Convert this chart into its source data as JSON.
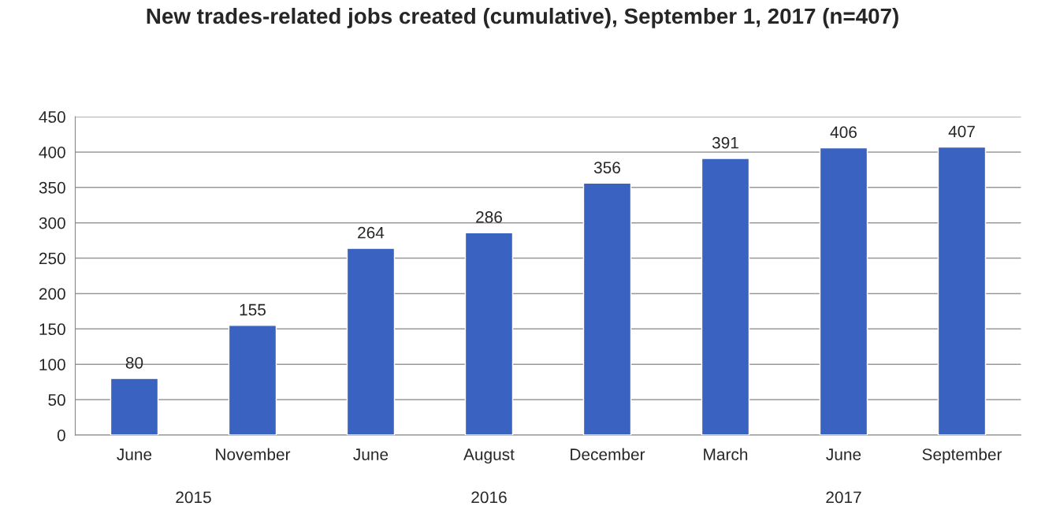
{
  "chart_data": {
    "type": "bar",
    "title": "New trades-related jobs created (cumulative), September 1, 2017 (n=407)",
    "categories": [
      "June",
      "November",
      "June",
      "August",
      "December",
      "March",
      "June",
      "September"
    ],
    "values": [
      80,
      155,
      264,
      286,
      356,
      391,
      406,
      407
    ],
    "color": "#3a62c0",
    "ylim": [
      0,
      450
    ],
    "yticks": [
      0,
      50,
      100,
      150,
      200,
      250,
      300,
      350,
      400,
      450
    ],
    "grid": "y",
    "data_labels": true,
    "annotations": [
      "2015",
      "2016",
      "2017"
    ]
  }
}
